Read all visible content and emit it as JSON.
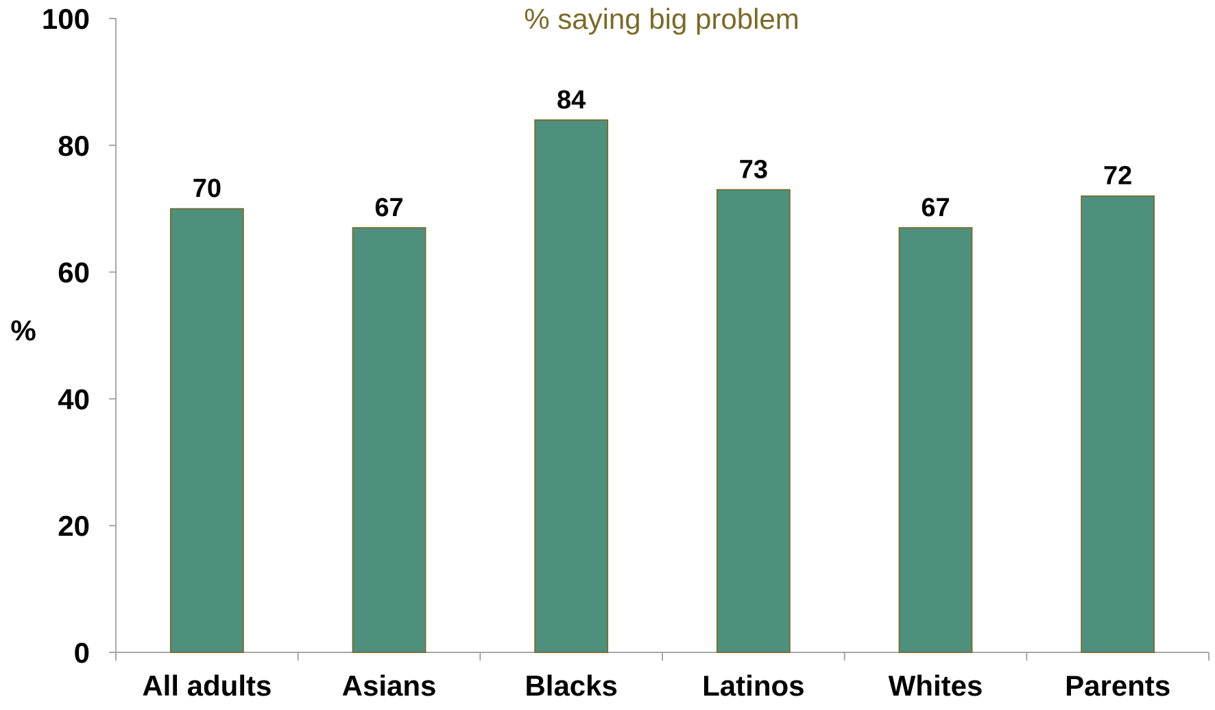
{
  "chart_data": {
    "type": "bar",
    "title": "% saying big problem",
    "ylabel": "%",
    "xlabel": "",
    "categories": [
      "All adults",
      "Asians",
      "Blacks",
      "Latinos",
      "Whites",
      "Parents"
    ],
    "series": [
      {
        "values": [
          70,
          67,
          84,
          73,
          67,
          72
        ]
      }
    ],
    "ylim": [
      0,
      100
    ],
    "yticks": [
      0,
      20,
      40,
      60,
      80,
      100
    ],
    "data_labels": true,
    "grid": false,
    "legend": "none",
    "colors": {
      "bar_fill": "#4f8f7d",
      "bar_stroke": "#7a6320",
      "axis": "#a7a7a7",
      "title": "#7a6a2a",
      "text": "#000000"
    }
  }
}
